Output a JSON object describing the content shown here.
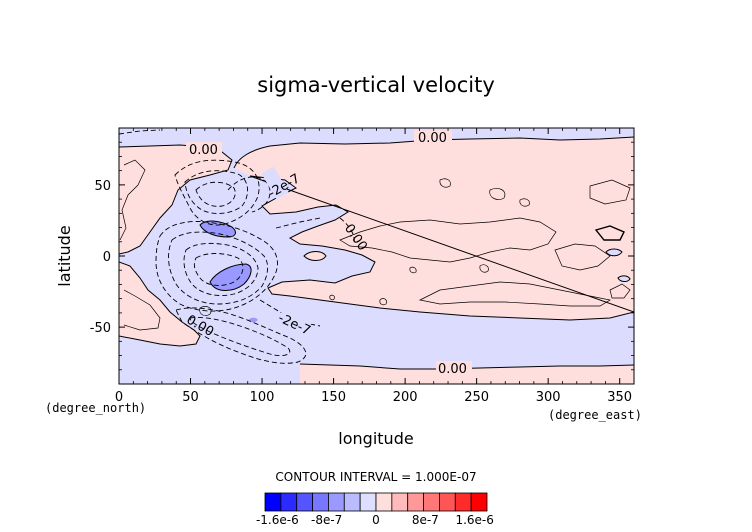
{
  "chart_data": {
    "type": "heatmap",
    "title": "sigma-vertical velocity",
    "xlabel": "longitude",
    "ylabel": "latitude",
    "x_units": "(degree_east)",
    "y_units": "(degree_north)",
    "xlim": [
      0,
      360
    ],
    "ylim": [
      -90,
      90
    ],
    "x_ticks": [
      0,
      50,
      100,
      150,
      200,
      250,
      300,
      350
    ],
    "y_ticks": [
      -50,
      0,
      50
    ],
    "contour_interval_text": "CONTOUR INTERVAL = 1.000E-07",
    "contour_labels": [
      {
        "text": "0.00",
        "lon": 60,
        "lat": 74
      },
      {
        "text": "0.00",
        "lon": 222,
        "lat": 84
      },
      {
        "text": "-2e-7",
        "lon": 118,
        "lat": 53
      },
      {
        "text": "0.00",
        "lon": 161,
        "lat": 9
      },
      {
        "text": "-2e-7",
        "lon": 125,
        "lat": -51
      },
      {
        "text": "0.00",
        "lon": 57,
        "lat": -57
      },
      {
        "text": "0.00",
        "lon": 231,
        "lat": -80
      }
    ],
    "colorbar": {
      "colors": [
        "#0000ff",
        "#2b2bff",
        "#5555ff",
        "#7777ff",
        "#9999ff",
        "#bbbbff",
        "#dedeff",
        "#ffdede",
        "#ffbbbb",
        "#ff9999",
        "#ff7777",
        "#ff5555",
        "#ff2b2b",
        "#ff0000"
      ],
      "tick_labels": [
        "-1.6e-6",
        "-8e-7",
        "0",
        "8e-7",
        "1.6e-6"
      ],
      "tick_values": [
        -1.6e-06,
        -8e-07,
        0,
        8e-07,
        1.6e-06
      ],
      "range": [
        -1.8e-06,
        1.8e-06
      ]
    },
    "field_colors": {
      "negative": "#dcdcff",
      "positive": "#ffdede",
      "strong_negative": "#9999ff"
    }
  }
}
